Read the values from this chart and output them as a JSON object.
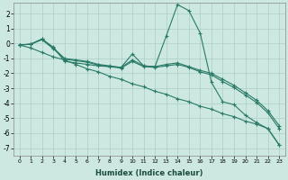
{
  "xlabel": "Humidex (Indice chaleur)",
  "xlim": [
    -0.5,
    23.5
  ],
  "ylim": [
    -7.5,
    2.7
  ],
  "yticks": [
    -7,
    -6,
    -5,
    -4,
    -3,
    -2,
    -1,
    0,
    1,
    2
  ],
  "xticks": [
    0,
    1,
    2,
    3,
    4,
    5,
    6,
    7,
    8,
    9,
    10,
    11,
    12,
    13,
    14,
    15,
    16,
    17,
    18,
    19,
    20,
    21,
    22,
    23
  ],
  "background_color": "#cce8e0",
  "grid_color": "#aacfc8",
  "line_color": "#2a7a68",
  "lines": [
    {
      "x": [
        0,
        1,
        2,
        3,
        4,
        5,
        6,
        7,
        8,
        9,
        10,
        11,
        12,
        13,
        14,
        15,
        16,
        17,
        18,
        19,
        20,
        21,
        22,
        23
      ],
      "y": [
        -0.1,
        -0.05,
        0.3,
        -0.25,
        -1.2,
        -1.3,
        -1.4,
        -1.5,
        -1.55,
        -1.6,
        -0.7,
        -1.5,
        -1.55,
        0.5,
        2.6,
        2.2,
        0.7,
        -2.6,
        -3.9,
        -4.1,
        -4.8,
        -5.3,
        -5.7,
        -6.8
      ]
    },
    {
      "x": [
        0,
        1,
        2,
        3,
        4,
        5,
        6,
        7,
        8,
        9,
        10,
        11,
        12,
        13,
        14,
        15,
        16,
        17,
        18,
        19,
        20,
        21,
        22,
        23
      ],
      "y": [
        -0.1,
        -0.3,
        -0.6,
        -0.9,
        -1.1,
        -1.4,
        -1.7,
        -1.9,
        -2.2,
        -2.4,
        -2.7,
        -2.9,
        -3.2,
        -3.4,
        -3.7,
        -3.9,
        -4.2,
        -4.4,
        -4.7,
        -4.9,
        -5.2,
        -5.4,
        -5.7,
        -6.8
      ]
    },
    {
      "x": [
        0,
        1,
        2,
        3,
        4,
        5,
        6,
        7,
        8,
        9,
        10,
        11,
        12,
        13,
        14,
        15,
        16,
        17,
        18,
        19,
        20,
        21,
        22,
        23
      ],
      "y": [
        -0.1,
        -0.05,
        0.3,
        -0.3,
        -1.0,
        -1.1,
        -1.2,
        -1.4,
        -1.5,
        -1.6,
        -1.1,
        -1.5,
        -1.55,
        -1.4,
        -1.3,
        -1.55,
        -1.8,
        -2.0,
        -2.4,
        -2.8,
        -3.3,
        -3.8,
        -4.5,
        -5.5
      ]
    },
    {
      "x": [
        0,
        1,
        2,
        3,
        4,
        5,
        6,
        7,
        8,
        9,
        10,
        11,
        12,
        13,
        14,
        15,
        16,
        17,
        18,
        19,
        20,
        21,
        22,
        23
      ],
      "y": [
        -0.1,
        -0.05,
        0.25,
        -0.35,
        -1.05,
        -1.15,
        -1.25,
        -1.45,
        -1.55,
        -1.65,
        -1.2,
        -1.55,
        -1.6,
        -1.5,
        -1.4,
        -1.6,
        -1.9,
        -2.1,
        -2.55,
        -2.95,
        -3.45,
        -3.95,
        -4.65,
        -5.7
      ]
    }
  ]
}
